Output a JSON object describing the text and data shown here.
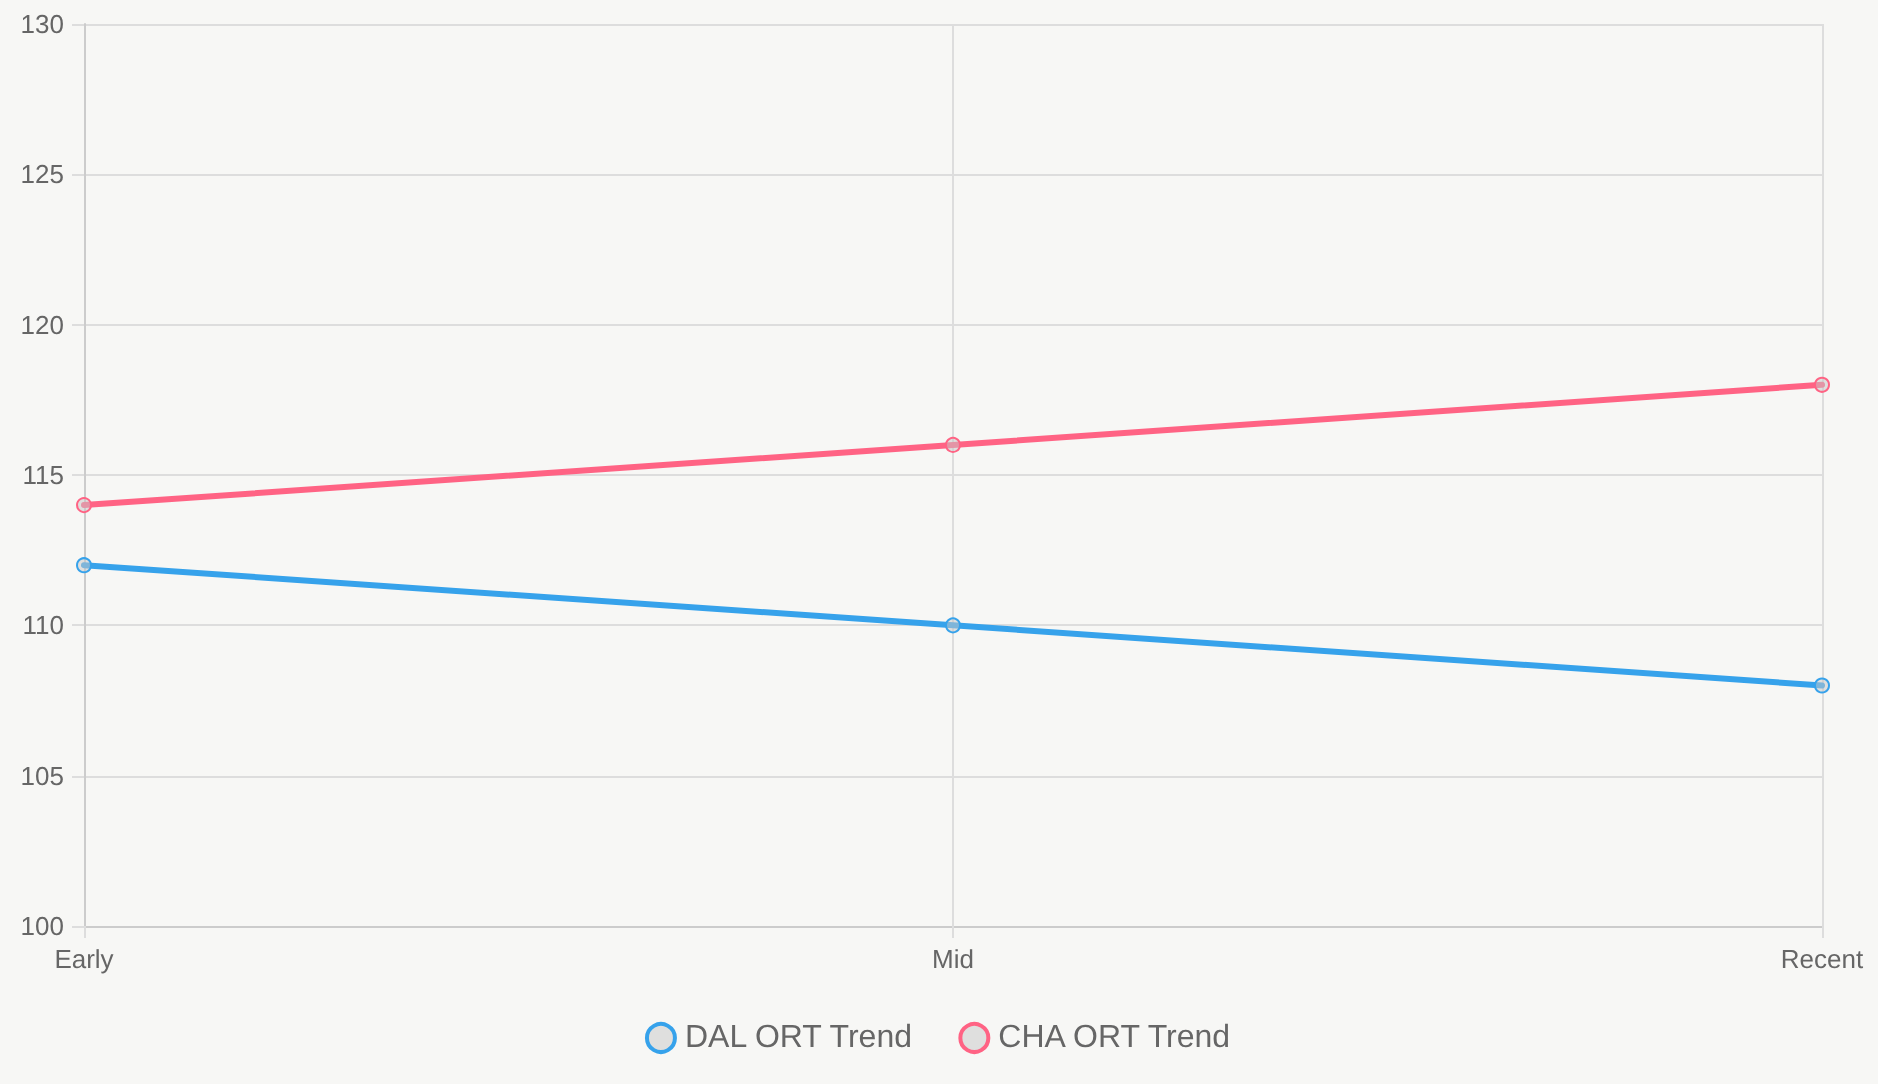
{
  "chart_data": {
    "type": "line",
    "categories": [
      "Early",
      "Mid",
      "Recent"
    ],
    "series": [
      {
        "name": "DAL ORT Trend",
        "color": "#36a2eb",
        "values": [
          112,
          110,
          108
        ]
      },
      {
        "name": "CHA ORT Trend",
        "color": "#ff6384",
        "values": [
          114,
          116,
          118
        ]
      }
    ],
    "ylim": [
      100,
      130
    ],
    "yticks": [
      100,
      105,
      110,
      115,
      120,
      125,
      130
    ],
    "grid": true,
    "legend": "bottom",
    "marker": "circle",
    "line_style": "solid"
  }
}
